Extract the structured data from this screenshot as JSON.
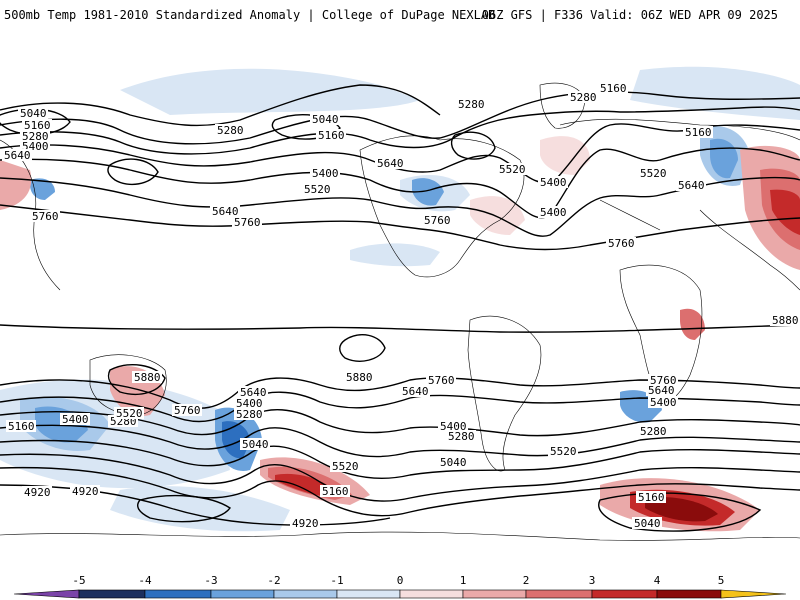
{
  "header": {
    "left_title": "500mb Temp 1981-2010 Standardized Anomaly | College of DuPage NEXLAB",
    "right_title": "06Z GFS | F336 Valid: 06Z WED APR 09 2025"
  },
  "colors": {
    "below_minus5": "#7a43a8",
    "minus5_to_minus4": "#1c2f5e",
    "minus4_to_minus3": "#2d6fbf",
    "minus3_to_minus2": "#6aa2dc",
    "minus2_to_minus1": "#a9c9ea",
    "minus1_to_0": "#d9e6f4",
    "zero_to_1": "#f6dede",
    "one_to_2": "#eaa9a9",
    "two_to_3": "#dc6f6f",
    "three_to_4": "#c42a2a",
    "four_to_5": "#8a0c0c",
    "above_5": "#f4c21a",
    "contour": "#000000",
    "coastline": "#000000",
    "background": "#ffffff"
  },
  "colorbar": {
    "ticks": [
      "-5",
      "-4",
      "-3",
      "-2",
      "-1",
      "0",
      "1",
      "2",
      "3",
      "4",
      "5"
    ]
  },
  "contour_labels": [
    "5040",
    "5160",
    "5280",
    "5400",
    "5640",
    "5760",
    "5280",
    "5160",
    "5040",
    "5400",
    "5520",
    "5640",
    "5760",
    "5280",
    "5160",
    "5400",
    "5520",
    "5640",
    "5760",
    "5280",
    "5160",
    "5400",
    "5520",
    "5640",
    "5760",
    "5160",
    "5280",
    "5400",
    "5520",
    "5640",
    "5760",
    "5880",
    "5880",
    "5880",
    "5760",
    "5400",
    "5520",
    "5760",
    "5640",
    "5400",
    "5280",
    "5040",
    "5160",
    "5520",
    "4920",
    "4920",
    "4920",
    "5640",
    "5400",
    "5280",
    "5400",
    "5520",
    "5040",
    "5760",
    "5640",
    "5400",
    "5280",
    "5160",
    "5040",
    "5280",
    "5160",
    "5400"
  ]
}
